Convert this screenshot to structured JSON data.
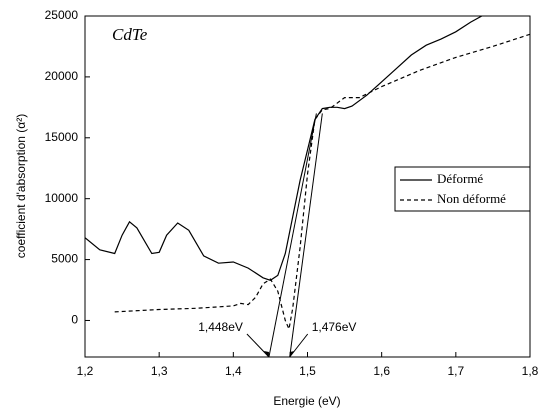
{
  "chart_data": {
    "type": "line",
    "title": "CdTe",
    "xlabel": "Energie (eV)",
    "ylabel": "coefficient d'absorption (α²)",
    "xlim": [
      1.2,
      1.8
    ],
    "ylim": [
      -3000,
      25000
    ],
    "xticks": [
      {
        "value": 1.2,
        "label": "1,2"
      },
      {
        "value": 1.3,
        "label": "1,3"
      },
      {
        "value": 1.4,
        "label": "1,4"
      },
      {
        "value": 1.5,
        "label": "1,5"
      },
      {
        "value": 1.6,
        "label": "1,6"
      },
      {
        "value": 1.7,
        "label": "1,7"
      },
      {
        "value": 1.8,
        "label": "1,8"
      }
    ],
    "yticks": [
      0,
      5000,
      10000,
      15000,
      20000,
      25000
    ],
    "legend": "right",
    "series": [
      {
        "name": "Déformé",
        "color": "#000000",
        "dash": "solid",
        "x": [
          1.2,
          1.22,
          1.24,
          1.25,
          1.26,
          1.27,
          1.29,
          1.3,
          1.31,
          1.325,
          1.34,
          1.36,
          1.38,
          1.4,
          1.42,
          1.44,
          1.45,
          1.46,
          1.47,
          1.48,
          1.49,
          1.5,
          1.51,
          1.52,
          1.53,
          1.54,
          1.55,
          1.56,
          1.58,
          1.6,
          1.62,
          1.64,
          1.66,
          1.68,
          1.7,
          1.72,
          1.735
        ],
        "values": [
          6800,
          5800,
          5500,
          7000,
          8100,
          7600,
          5500,
          5600,
          7000,
          8000,
          7400,
          5300,
          4700,
          4800,
          4300,
          3500,
          3300,
          3700,
          5500,
          8500,
          11500,
          14000,
          16500,
          17400,
          17500,
          17500,
          17400,
          17600,
          18500,
          19600,
          20700,
          21800,
          22600,
          23100,
          23700,
          24500,
          25000
        ]
      },
      {
        "name": "Non déformé",
        "color": "#000000",
        "dash": "dashed",
        "x": [
          1.24,
          1.3,
          1.35,
          1.4,
          1.41,
          1.42,
          1.43,
          1.44,
          1.45,
          1.46,
          1.47,
          1.475,
          1.48,
          1.49,
          1.5,
          1.51,
          1.52,
          1.53,
          1.55,
          1.57,
          1.6,
          1.65,
          1.7,
          1.75,
          1.8
        ],
        "values": [
          700,
          900,
          1000,
          1200,
          1400,
          1300,
          1900,
          3000,
          3400,
          2400,
          0,
          -700,
          1000,
          6000,
          12000,
          16500,
          17300,
          17400,
          18300,
          18300,
          19200,
          20500,
          21600,
          22500,
          23500
        ]
      }
    ],
    "tangents": [
      {
        "x": [
          1.448,
          1.512
        ],
        "y": [
          -3000,
          17000
        ]
      },
      {
        "x": [
          1.476,
          1.52
        ],
        "y": [
          -3000,
          17000
        ]
      }
    ],
    "annotations": [
      {
        "text": "1,448eV",
        "x": 1.448
      },
      {
        "text": "1,476eV",
        "x": 1.476
      }
    ]
  }
}
